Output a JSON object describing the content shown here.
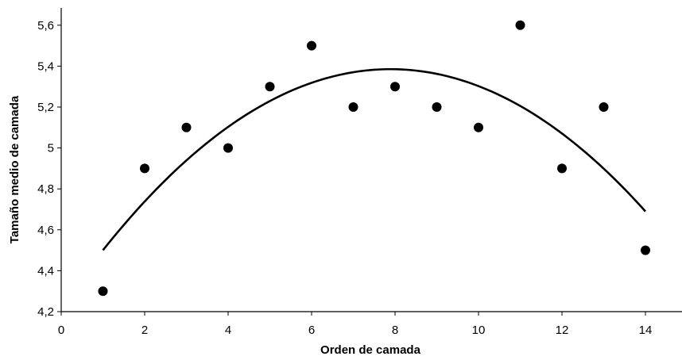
{
  "chart_data": {
    "type": "scatter",
    "title": "",
    "xlabel": "Orden de camada",
    "ylabel": "Tamaño medio de camada",
    "xlim": [
      0,
      15
    ],
    "ylim": [
      4.2,
      5.7
    ],
    "xticks": [
      0,
      2,
      4,
      6,
      8,
      10,
      12,
      14
    ],
    "xtick_labels": [
      "0",
      "2",
      "4",
      "6",
      "8",
      "10",
      "12",
      "14"
    ],
    "yticks": [
      4.2,
      4.4,
      4.6,
      4.8,
      5.0,
      5.2,
      5.4,
      5.6
    ],
    "ytick_labels": [
      "4,2",
      "4,4",
      "4,6",
      "4,8",
      "5",
      "5,2",
      "5,4",
      "5,6"
    ],
    "grid": false,
    "legend": "none",
    "marker_color": "#000000",
    "series": [
      {
        "x": [
          1,
          2,
          3,
          4,
          5,
          6,
          7,
          8,
          9,
          10,
          11,
          12,
          13,
          14
        ],
        "y": [
          4.3,
          4.9,
          5.1,
          5.0,
          5.3,
          5.5,
          5.2,
          5.3,
          5.2,
          5.1,
          5.6,
          4.9,
          5.2,
          4.5
        ]
      }
    ],
    "trendline": {
      "type": "polynomial",
      "order": 2,
      "x_range": [
        1,
        14
      ],
      "points": [
        {
          "x": 1,
          "y": 4.5
        },
        {
          "x": 7.8,
          "y": 5.385
        },
        {
          "x": 14,
          "y": 4.69
        }
      ]
    }
  }
}
